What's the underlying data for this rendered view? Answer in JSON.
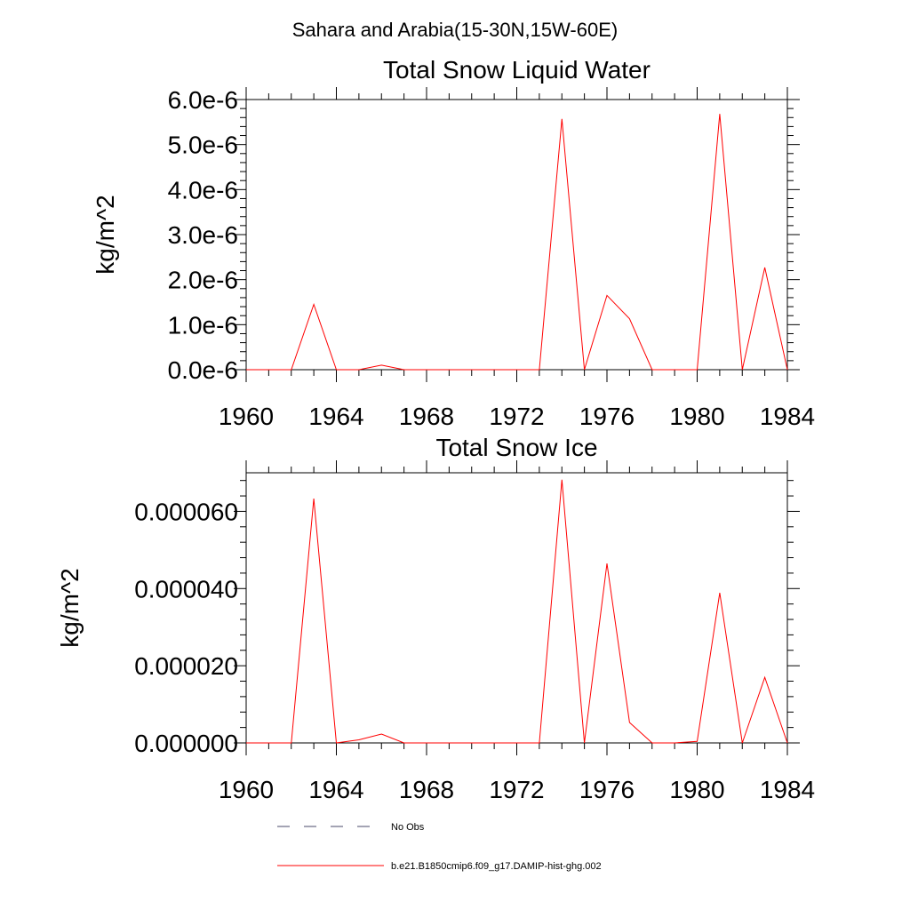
{
  "figure": {
    "suptitle": "Sahara and Arabia(15-30N,15W-60E)"
  },
  "colors": {
    "model_line": "#ff0000",
    "obs_line": "#4a4a6a",
    "axis": "#000000"
  },
  "chart_data": [
    {
      "type": "line",
      "title": "Total Snow Liquid Water",
      "xlabel": "",
      "ylabel": "kg/m^2",
      "xlim": [
        1960,
        1984
      ],
      "ylim": [
        0,
        6e-06
      ],
      "xticks": [
        1960,
        1964,
        1968,
        1972,
        1976,
        1980,
        1984
      ],
      "xtick_labels": [
        "1960",
        "1964",
        "1968",
        "1972",
        "1976",
        "1980",
        "1984"
      ],
      "yticks": [
        0,
        1e-06,
        2e-06,
        3e-06,
        4e-06,
        5e-06,
        6e-06
      ],
      "ytick_labels": [
        "0.0e-6",
        "1.0e-6",
        "2.0e-6",
        "3.0e-6",
        "4.0e-6",
        "5.0e-6",
        "6.0e-6"
      ],
      "grid": false,
      "x": [
        1960,
        1961,
        1962,
        1963,
        1964,
        1965,
        1966,
        1967,
        1968,
        1969,
        1970,
        1971,
        1972,
        1973,
        1974,
        1975,
        1976,
        1977,
        1978,
        1979,
        1980,
        1981,
        1982,
        1983,
        1984
      ],
      "series": [
        {
          "name": "b.e21.B1850cmip6.f09_g17.DAMIP-hist-ghg.002",
          "values": [
            0,
            0,
            0,
            1.45e-06,
            0,
            0,
            1e-07,
            0,
            0,
            0,
            0,
            0,
            0,
            0,
            5.57e-06,
            0,
            1.65e-06,
            1.13e-06,
            0,
            0,
            0,
            5.68e-06,
            0,
            2.27e-06,
            0
          ]
        }
      ]
    },
    {
      "type": "line",
      "title": "Total Snow Ice",
      "xlabel": "",
      "ylabel": "kg/m^2",
      "xlim": [
        1960,
        1984
      ],
      "ylim": [
        0,
        7e-05
      ],
      "xticks": [
        1960,
        1964,
        1968,
        1972,
        1976,
        1980,
        1984
      ],
      "xtick_labels": [
        "1960",
        "1964",
        "1968",
        "1972",
        "1976",
        "1980",
        "1984"
      ],
      "yticks": [
        0,
        2e-05,
        4e-05,
        6e-05
      ],
      "ytick_labels": [
        "0.000000",
        "0.000020",
        "0.000040",
        "0.000060"
      ],
      "grid": false,
      "x": [
        1960,
        1961,
        1962,
        1963,
        1964,
        1965,
        1966,
        1967,
        1968,
        1969,
        1970,
        1971,
        1972,
        1973,
        1974,
        1975,
        1976,
        1977,
        1978,
        1979,
        1980,
        1981,
        1982,
        1983,
        1984
      ],
      "series": [
        {
          "name": "b.e21.B1850cmip6.f09_g17.DAMIP-hist-ghg.002",
          "values": [
            0,
            0,
            0,
            6.33e-05,
            0,
            8e-07,
            2.3e-06,
            0,
            0,
            0,
            0,
            0,
            0,
            0,
            6.82e-05,
            0,
            4.65e-05,
            5.3e-06,
            0,
            0,
            4e-07,
            3.89e-05,
            0,
            1.7e-05,
            0
          ]
        }
      ]
    }
  ],
  "legend": {
    "placement": "bottom",
    "items": [
      {
        "label": "No Obs",
        "style": "dashed"
      },
      {
        "label": "b.e21.B1850cmip6.f09_g17.DAMIP-hist-ghg.002",
        "style": "solid"
      }
    ]
  }
}
